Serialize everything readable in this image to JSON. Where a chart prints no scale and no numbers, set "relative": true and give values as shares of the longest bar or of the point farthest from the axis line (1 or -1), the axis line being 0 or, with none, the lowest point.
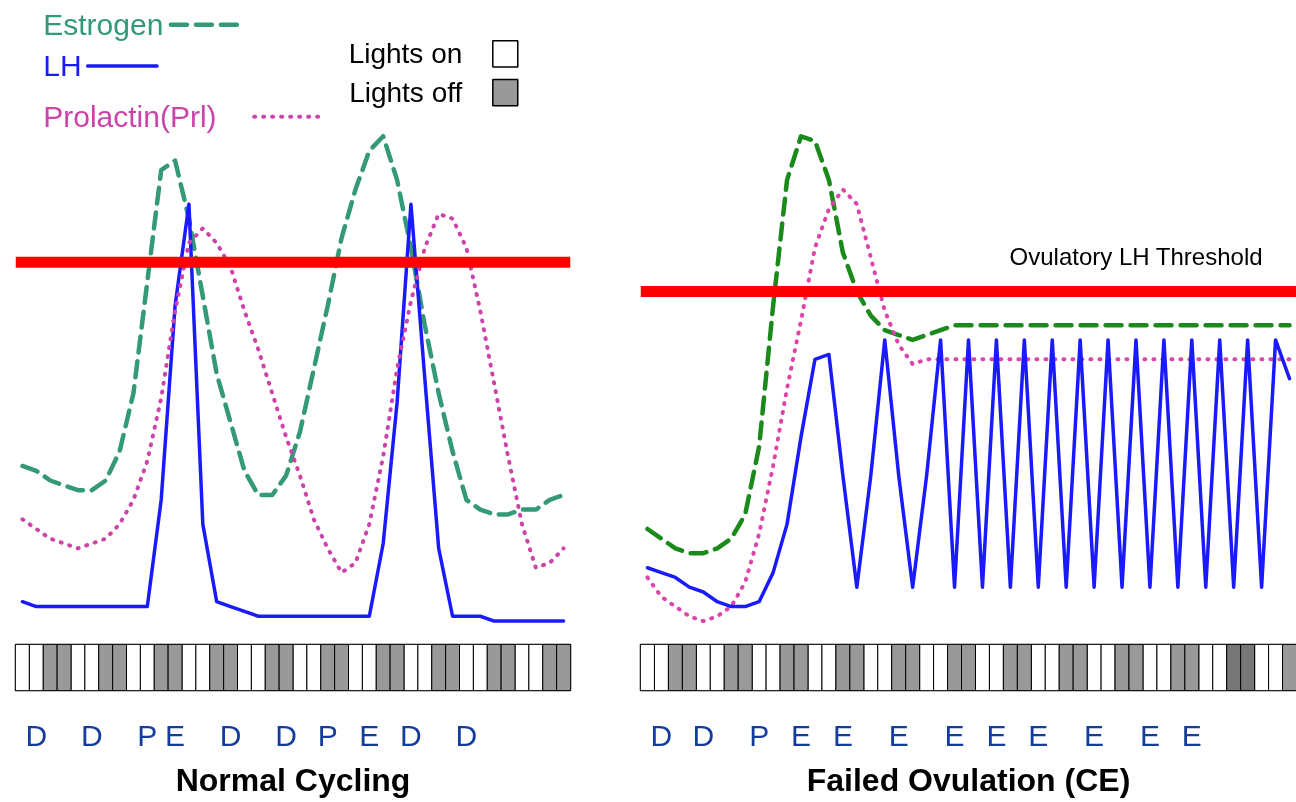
{
  "chart_data": [
    {
      "type": "line",
      "relative": true,
      "legend": "top left",
      "series": [
        {
          "name": "Estrogen",
          "color": "#339977",
          "line_style": "dashed",
          "values": [
            0.32,
            0.31,
            0.29,
            0.28,
            0.27,
            0.27,
            0.29,
            0.35,
            0.47,
            0.7,
            0.93,
            0.95,
            0.83,
            0.67,
            0.51,
            0.41,
            0.31,
            0.26,
            0.26,
            0.3,
            0.39,
            0.52,
            0.65,
            0.79,
            0.89,
            0.97,
            1,
            0.91,
            0.77,
            0.61,
            0.47,
            0.35,
            0.25,
            0.23,
            0.22,
            0.22,
            0.23,
            0.23,
            0.25,
            0.26
          ]
        },
        {
          "name": "LH",
          "color": "#1a1aff",
          "line_style": "solid",
          "values": [
            0.04,
            0.03,
            0.03,
            0.03,
            0.03,
            0.03,
            0.03,
            0.03,
            0.03,
            0.03,
            0.25,
            0.65,
            0.86,
            0.2,
            0.04,
            0.03,
            0.02,
            0.01,
            0.01,
            0.01,
            0.01,
            0.01,
            0.01,
            0.01,
            0.01,
            0.01,
            0.16,
            0.45,
            0.86,
            0.5,
            0.15,
            0.01,
            0.01,
            0.01,
            0,
            0,
            0,
            0,
            0,
            0
          ]
        },
        {
          "name": "Prolactin(Prl)",
          "color": "#cc44aa",
          "line_style": "dotted",
          "values": [
            0.21,
            0.19,
            0.17,
            0.16,
            0.15,
            0.16,
            0.17,
            0.2,
            0.25,
            0.33,
            0.46,
            0.64,
            0.78,
            0.81,
            0.78,
            0.73,
            0.64,
            0.56,
            0.47,
            0.38,
            0.3,
            0.21,
            0.15,
            0.1,
            0.12,
            0.2,
            0.34,
            0.52,
            0.66,
            0.77,
            0.84,
            0.83,
            0.77,
            0.64,
            0.49,
            0.34,
            0.2,
            0.11,
            0.12,
            0.15
          ]
        }
      ],
      "ref_lines": [
        {
          "axis": "y",
          "value": 0.74,
          "label": null,
          "color": "#ff0000"
        }
      ]
    },
    {
      "type": "bar",
      "title": "Normal Cycling",
      "relative": true,
      "legend": "top",
      "categories": [
        null,
        "D",
        null,
        null,
        null,
        "D",
        null,
        null,
        null,
        "P",
        null,
        "E",
        null,
        null,
        null,
        "D",
        null,
        null,
        null,
        "D",
        null,
        null,
        "P",
        null,
        null,
        "E",
        null,
        null,
        "D",
        null,
        null,
        null,
        "D",
        null,
        null,
        null,
        null,
        null,
        null,
        null
      ],
      "series": [
        {
          "name": "Lights on",
          "color": "#ffffff",
          "values": [
            1,
            1,
            null,
            null,
            1,
            1,
            null,
            null,
            1,
            1,
            null,
            null,
            1,
            1,
            null,
            null,
            1,
            1,
            null,
            null,
            1,
            1,
            null,
            null,
            1,
            1,
            null,
            null,
            1,
            1,
            null,
            null,
            1,
            1,
            null,
            null,
            1,
            1,
            null,
            null
          ]
        },
        {
          "name": "Lights off",
          "color": "#999999",
          "values": [
            null,
            null,
            1,
            1,
            null,
            null,
            1,
            1,
            null,
            null,
            1,
            1,
            null,
            null,
            1,
            1,
            null,
            null,
            1,
            1,
            null,
            null,
            1,
            1,
            null,
            null,
            1,
            1,
            null,
            null,
            1,
            1,
            null,
            null,
            1,
            1,
            null,
            null,
            1,
            1
          ]
        }
      ]
    },
    {
      "type": "line",
      "relative": true,
      "series": [
        {
          "color": "#1a8a1a",
          "line_style": "dashed",
          "values": [
            0.19,
            0.17,
            0.15,
            0.14,
            0.14,
            0.15,
            0.17,
            0.22,
            0.36,
            0.65,
            0.91,
            1,
            0.99,
            0.91,
            0.76,
            0.68,
            0.63,
            0.6,
            0.59,
            0.58,
            0.59,
            0.6,
            0.61,
            0.61,
            0.61,
            0.61,
            0.61,
            0.61,
            0.61,
            0.61,
            0.61,
            0.61,
            0.61,
            0.61,
            0.61,
            0.61,
            0.61,
            0.61,
            0.61,
            0.61,
            0.61,
            0.61,
            0.61,
            0.61,
            0.61,
            0.61,
            0.61
          ]
        },
        {
          "color": "#dd44aa",
          "line_style": "dotted",
          "values": [
            0.09,
            0.05,
            0.03,
            0.01,
            0,
            0.01,
            0.03,
            0.08,
            0.18,
            0.32,
            0.48,
            0.62,
            0.77,
            0.85,
            0.89,
            0.86,
            0.75,
            0.64,
            0.57,
            0.53,
            0.54,
            0.54,
            0.54,
            0.54,
            0.54,
            0.54,
            0.54,
            0.54,
            0.54,
            0.54,
            0.54,
            0.54,
            0.54,
            0.54,
            0.54,
            0.54,
            0.54,
            0.54,
            0.54,
            0.54,
            0.54,
            0.54,
            0.54,
            0.54,
            0.54,
            0.54,
            0.54
          ]
        },
        {
          "color": "#1a1aff",
          "line_style": "solid",
          "values": [
            0.11,
            0.1,
            0.09,
            0.07,
            0.06,
            0.04,
            0.03,
            0.03,
            0.04,
            0.1,
            0.2,
            0.38,
            0.54,
            0.55,
            0.3,
            0.07,
            0.3,
            0.58,
            0.3,
            0.07,
            0.3,
            0.58,
            0.07,
            0.58,
            0.07,
            0.58,
            0.07,
            0.58,
            0.07,
            0.58,
            0.07,
            0.58,
            0.07,
            0.58,
            0.07,
            0.58,
            0.07,
            0.58,
            0.07,
            0.58,
            0.07,
            0.58,
            0.07,
            0.58,
            0.07,
            0.58,
            0.5
          ]
        }
      ],
      "ref_lines": [
        {
          "axis": "y",
          "value": 0.68,
          "label": "Ovulatory LH Threshold",
          "color": "#ff0000"
        }
      ]
    },
    {
      "type": "bar",
      "title": "Failed Ovulation (CE)",
      "relative": true,
      "categories": [
        null,
        "D",
        null,
        null,
        "D",
        null,
        null,
        null,
        "P",
        null,
        null,
        "E",
        null,
        null,
        "E",
        null,
        null,
        null,
        "E",
        null,
        null,
        null,
        "E",
        null,
        null,
        "E",
        null,
        null,
        "E",
        null,
        null,
        null,
        "E",
        null,
        null,
        null,
        "E",
        null,
        null,
        "E",
        null,
        null,
        null,
        null,
        null,
        null,
        null
      ],
      "series": [
        {
          "color": "#ffffff",
          "values": [
            1,
            1,
            null,
            null,
            1,
            1,
            null,
            null,
            1,
            1,
            null,
            null,
            1,
            1,
            null,
            null,
            1,
            1,
            null,
            null,
            1,
            1,
            null,
            null,
            1,
            1,
            null,
            null,
            1,
            1,
            null,
            null,
            1,
            1,
            null,
            null,
            1,
            1,
            null,
            null,
            1,
            1,
            null,
            null,
            1,
            1,
            null
          ]
        },
        {
          "values": [
            null,
            null,
            1,
            1,
            null,
            null,
            1,
            1,
            null,
            null,
            1,
            1,
            null,
            null,
            1,
            1,
            null,
            null,
            1,
            1,
            null,
            null,
            1,
            1,
            null,
            null,
            1,
            1,
            null,
            null,
            1,
            1,
            null,
            null,
            1,
            1,
            null,
            null,
            1,
            1,
            null,
            null,
            1,
            1,
            null,
            null,
            1
          ],
          "colors": [
            null,
            null,
            "#999999",
            "#999999",
            null,
            null,
            "#999999",
            "#999999",
            null,
            null,
            "#999999",
            "#999999",
            null,
            null,
            "#999999",
            "#999999",
            null,
            null,
            "#999999",
            "#999999",
            null,
            null,
            "#999999",
            "#999999",
            null,
            null,
            "#999999",
            "#999999",
            null,
            null,
            "#999999",
            "#999999",
            null,
            null,
            "#999999",
            "#999999",
            null,
            null,
            "#999999",
            "#999999",
            null,
            null,
            "#777777",
            "#777777",
            null,
            null,
            "#999999"
          ]
        }
      ]
    }
  ]
}
